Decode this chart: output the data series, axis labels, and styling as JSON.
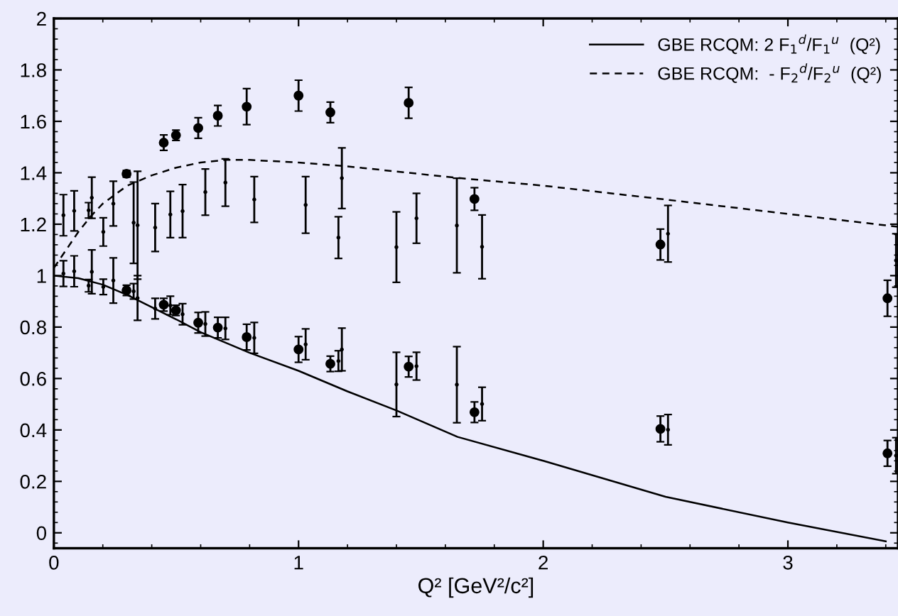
{
  "chart_data": {
    "type": "scatter",
    "xlabel": "Q² [GeV²/c²]",
    "xlim": [
      0,
      3.45
    ],
    "ylim": [
      -0.06,
      2
    ],
    "xticks": [
      0,
      1,
      2,
      3
    ],
    "yticks": [
      0,
      0.2,
      0.4,
      0.6,
      0.8,
      1,
      1.2,
      1.4,
      1.6,
      1.8,
      2
    ],
    "grid": false,
    "legend": "top right",
    "series": [
      {
        "name": "GBE RCQM: 2 F$_{1}$$^{d}$/F$_{1}$$^{u}$  (Q²)",
        "type": "line",
        "line_style": "solid",
        "color": "#000000",
        "x": [
          0,
          0.1,
          0.2,
          0.3,
          0.4,
          0.5,
          0.6,
          0.7,
          0.8,
          1.0,
          1.2,
          1.4,
          1.65,
          2.0,
          2.5,
          3.0,
          3.4
        ],
        "values": [
          1.0,
          0.99,
          0.965,
          0.925,
          0.877,
          0.83,
          0.78,
          0.74,
          0.7,
          0.63,
          0.55,
          0.476,
          0.373,
          0.28,
          0.14,
          0.04,
          -0.033
        ]
      },
      {
        "name": "GBE RCQM:  - F$_{2}$$^{d}$/F$_{2}$$^{u}$  (Q²)",
        "type": "line",
        "line_style": "dashed",
        "color": "#000000",
        "x": [
          0,
          0.05,
          0.1,
          0.15,
          0.2,
          0.3,
          0.4,
          0.5,
          0.6,
          0.7,
          0.8,
          1.0,
          1.2,
          1.4,
          1.65,
          2.0,
          2.5,
          3.0,
          3.45
        ],
        "values": [
          1.03,
          1.1,
          1.17,
          1.23,
          1.28,
          1.35,
          1.39,
          1.42,
          1.44,
          1.45,
          1.45,
          1.44,
          1.425,
          1.405,
          1.38,
          1.35,
          1.296,
          1.24,
          1.19
        ]
      },
      {
        "marker": "circle",
        "color": "#000000",
        "x": [
          0.297,
          0.449,
          0.499,
          0.59,
          0.67,
          0.788,
          1.0,
          1.13,
          1.45,
          1.719,
          2.479,
          3.407
        ],
        "values": [
          1.396,
          1.517,
          1.546,
          1.574,
          1.622,
          1.657,
          1.7,
          1.635,
          1.672,
          1.298,
          1.121,
          0.912
        ],
        "errors": [
          0.013,
          0.03,
          0.02,
          0.04,
          0.04,
          0.07,
          0.06,
          0.04,
          0.06,
          0.044,
          0.06,
          0.07
        ]
      },
      {
        "marker": "circle",
        "color": "#000000",
        "x": [
          0.297,
          0.449,
          0.499,
          0.59,
          0.67,
          0.788,
          1.0,
          1.13,
          1.45,
          1.719,
          2.479,
          3.407
        ],
        "values": [
          0.943,
          0.887,
          0.865,
          0.817,
          0.798,
          0.761,
          0.713,
          0.657,
          0.646,
          0.469,
          0.404,
          0.309
        ],
        "errors": [
          0.02,
          0.025,
          0.02,
          0.04,
          0.04,
          0.05,
          0.05,
          0.03,
          0.04,
          0.04,
          0.05,
          0.05
        ]
      },
      {
        "color": "#000000",
        "x": [
          0.039,
          0.083,
          0.142,
          0.155,
          0.202,
          0.243,
          0.326,
          0.342,
          0.414,
          0.476,
          0.526,
          0.619,
          0.701,
          0.819,
          1.029,
          1.163,
          1.177,
          1.4,
          1.482,
          1.647,
          1.75,
          2.51,
          3.442
        ],
        "values": [
          1.235,
          1.252,
          1.254,
          1.303,
          1.17,
          1.28,
          1.206,
          1.196,
          1.187,
          1.238,
          1.251,
          1.325,
          1.362,
          1.296,
          1.275,
          1.148,
          1.379,
          1.111,
          1.223,
          1.195,
          1.112,
          1.163,
          1.059
        ],
        "errors": [
          0.08,
          0.078,
          0.03,
          0.08,
          0.055,
          0.087,
          0.158,
          0.21,
          0.093,
          0.09,
          0.103,
          0.09,
          0.092,
          0.089,
          0.11,
          0.081,
          0.118,
          0.137,
          0.097,
          0.184,
          0.124,
          0.11,
          0.104
        ]
      },
      {
        "color": "#000000",
        "x": [
          0.039,
          0.083,
          0.142,
          0.155,
          0.202,
          0.243,
          0.326,
          0.342,
          0.414,
          0.476,
          0.526,
          0.619,
          0.701,
          0.819,
          1.029,
          1.163,
          1.177,
          1.4,
          1.482,
          1.647,
          1.75,
          2.51,
          3.442
        ],
        "values": [
          1.008,
          1.017,
          0.961,
          1.015,
          0.956,
          0.981,
          0.939,
          0.913,
          0.872,
          0.884,
          0.85,
          0.812,
          0.795,
          0.758,
          0.733,
          0.668,
          0.713,
          0.577,
          0.648,
          0.576,
          0.501,
          0.401,
          0.3
        ],
        "errors": [
          0.05,
          0.06,
          0.024,
          0.085,
          0.03,
          0.088,
          0.03,
          0.087,
          0.04,
          0.036,
          0.041,
          0.047,
          0.043,
          0.06,
          0.06,
          0.04,
          0.083,
          0.125,
          0.054,
          0.148,
          0.065,
          0.059,
          0.07
        ]
      }
    ]
  }
}
